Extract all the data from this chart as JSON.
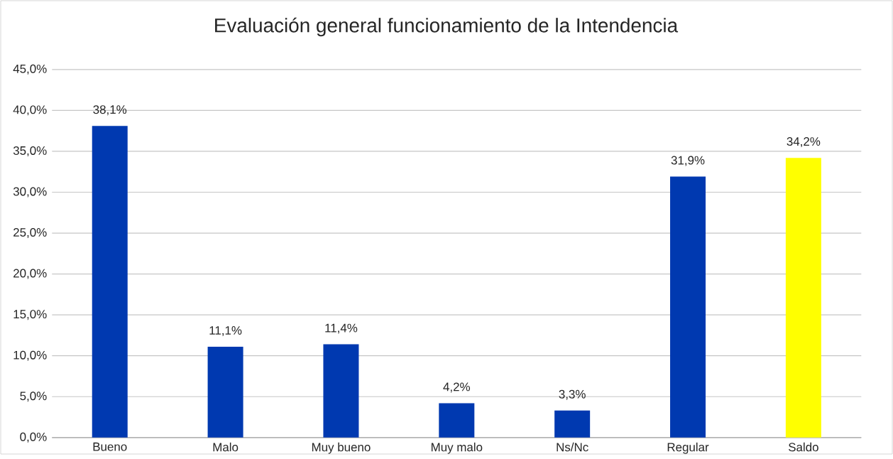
{
  "chart_data": {
    "type": "bar",
    "title": "Evaluación general funcionamiento de la Intendencia",
    "categories": [
      "Bueno",
      "Malo",
      "Muy bueno",
      "Muy malo",
      "Ns/Nc",
      "Regular",
      "Saldo"
    ],
    "values": [
      38.1,
      11.1,
      11.4,
      4.2,
      3.3,
      31.9,
      34.2
    ],
    "colors": [
      "#0039b0",
      "#0039b0",
      "#0039b0",
      "#0039b0",
      "#0039b0",
      "#0039b0",
      "#ffff00"
    ],
    "value_labels": [
      "38,1%",
      "11,1%",
      "11,4%",
      "4,2%",
      "3,3%",
      "31,9%",
      "34,2%"
    ],
    "ylim": [
      0,
      45
    ],
    "yticks": [
      {
        "value": 0,
        "label": "0,0%"
      },
      {
        "value": 5,
        "label": "5,0%"
      },
      {
        "value": 10,
        "label": "10,0%"
      },
      {
        "value": 15,
        "label": "15,0%"
      },
      {
        "value": 20,
        "label": "20,0%"
      },
      {
        "value": 25,
        "label": "25,0%"
      },
      {
        "value": 30,
        "label": "30,0%"
      },
      {
        "value": 35,
        "label": "35,0%"
      },
      {
        "value": 40,
        "label": "40,0%"
      },
      {
        "value": 45,
        "label": "45,0%"
      }
    ],
    "grid": "y"
  }
}
